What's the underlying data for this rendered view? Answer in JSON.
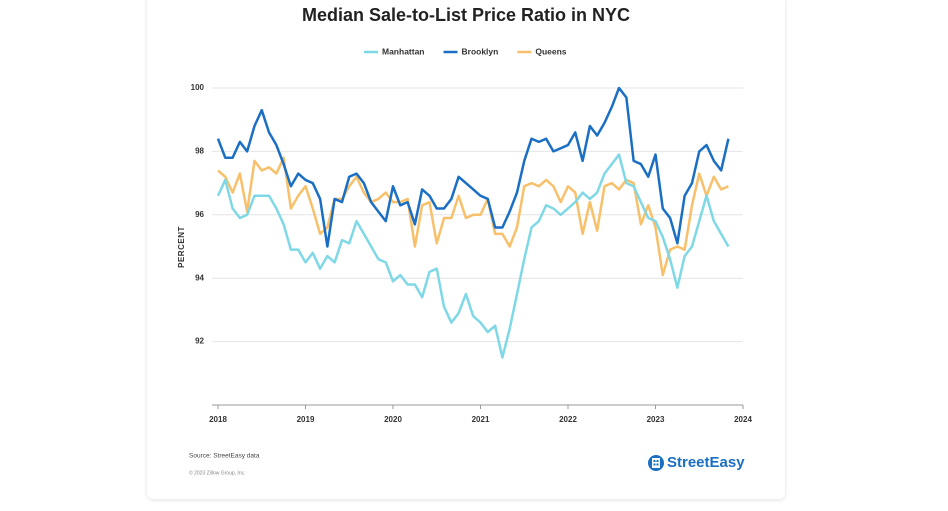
{
  "chart_data": {
    "type": "line",
    "title": "Median Sale-to-List Price Ratio in NYC",
    "y_label": "PERCENT",
    "source": "Source: StreetEasy data",
    "copyright": "© 2023 Zillow Group, Inc.",
    "brand": "StreetEasy",
    "x": [
      2018,
      2018.083,
      2018.167,
      2018.25,
      2018.333,
      2018.417,
      2018.5,
      2018.583,
      2018.667,
      2018.75,
      2018.833,
      2018.917,
      2019,
      2019.083,
      2019.167,
      2019.25,
      2019.333,
      2019.417,
      2019.5,
      2019.583,
      2019.667,
      2019.75,
      2019.833,
      2019.917,
      2020,
      2020.083,
      2020.167,
      2020.25,
      2020.333,
      2020.417,
      2020.5,
      2020.583,
      2020.667,
      2020.75,
      2020.833,
      2020.917,
      2021,
      2021.083,
      2021.167,
      2021.25,
      2021.333,
      2021.417,
      2021.5,
      2021.583,
      2021.667,
      2021.75,
      2021.833,
      2021.917,
      2022,
      2022.083,
      2022.167,
      2022.25,
      2022.333,
      2022.417,
      2022.5,
      2022.583,
      2022.667,
      2022.75,
      2022.833,
      2022.917,
      2023,
      2023.083,
      2023.167,
      2023.25,
      2023.333,
      2023.417,
      2023.5,
      2023.583,
      2023.667,
      2023.75,
      2023.833
    ],
    "series": [
      {
        "name": "Manhattan",
        "color": "#7fd8e6",
        "values": [
          96.6,
          97.1,
          96.2,
          95.9,
          96.0,
          96.6,
          96.6,
          96.6,
          96.2,
          95.7,
          94.9,
          94.9,
          94.5,
          94.8,
          94.3,
          94.7,
          94.5,
          95.2,
          95.1,
          95.8,
          95.4,
          95.0,
          94.6,
          94.5,
          93.9,
          94.1,
          93.8,
          93.8,
          93.4,
          94.2,
          94.3,
          93.1,
          92.6,
          92.9,
          93.5,
          92.8,
          92.6,
          92.3,
          92.5,
          91.5,
          92.4,
          93.5,
          94.6,
          95.6,
          95.8,
          96.3,
          96.2,
          96.0,
          96.2,
          96.4,
          96.7,
          96.5,
          96.7,
          97.3,
          97.6,
          97.9,
          97.0,
          96.9,
          96.4,
          95.9,
          95.8,
          95.3,
          94.6,
          93.7,
          94.7,
          95.0,
          95.8,
          96.6,
          95.8,
          95.4,
          95.0
        ]
      },
      {
        "name": "Brooklyn",
        "color": "#1a6fc4",
        "values": [
          98.4,
          97.8,
          97.8,
          98.3,
          98.0,
          98.8,
          99.3,
          98.6,
          98.2,
          97.6,
          96.9,
          97.3,
          97.1,
          97.0,
          96.5,
          95.0,
          96.5,
          96.4,
          97.2,
          97.3,
          97.0,
          96.4,
          96.1,
          95.8,
          96.9,
          96.3,
          96.4,
          95.7,
          96.8,
          96.6,
          96.2,
          96.2,
          96.5,
          97.2,
          97.0,
          96.8,
          96.6,
          96.5,
          95.6,
          95.6,
          96.1,
          96.7,
          97.7,
          98.4,
          98.3,
          98.4,
          98.0,
          98.1,
          98.2,
          98.6,
          97.7,
          98.8,
          98.5,
          98.9,
          99.4,
          100.0,
          99.7,
          97.7,
          97.6,
          97.2,
          97.9,
          96.2,
          95.9,
          95.1,
          96.6,
          97.0,
          98.0,
          98.2,
          97.7,
          97.4,
          98.4
        ]
      },
      {
        "name": "Queens",
        "color": "#f8c06a",
        "values": [
          97.4,
          97.2,
          96.7,
          97.3,
          96.1,
          97.7,
          97.4,
          97.5,
          97.3,
          97.8,
          96.2,
          96.6,
          96.9,
          96.2,
          95.4,
          95.6,
          96.5,
          96.5,
          96.9,
          97.2,
          96.7,
          96.4,
          96.5,
          96.7,
          96.4,
          96.4,
          96.5,
          95.0,
          96.3,
          96.4,
          95.1,
          95.9,
          95.9,
          96.6,
          95.9,
          96.0,
          96.0,
          96.5,
          95.4,
          95.4,
          95.0,
          95.6,
          96.9,
          97.0,
          96.9,
          97.1,
          96.9,
          96.4,
          96.9,
          96.7,
          95.4,
          96.4,
          95.5,
          96.9,
          97.0,
          96.8,
          97.1,
          97.0,
          95.7,
          96.3,
          95.6,
          94.1,
          94.9,
          95.0,
          94.9,
          96.3,
          97.3,
          96.6,
          97.2,
          96.8,
          96.9
        ]
      }
    ],
    "xlim": [
      2018,
      2024
    ],
    "xticks": [
      2018,
      2019,
      2020,
      2021,
      2022,
      2023,
      2024
    ],
    "ylim": [
      90,
      100
    ],
    "yticks": [
      92,
      94,
      96,
      98,
      100
    ],
    "grid": true,
    "legend": "top"
  }
}
